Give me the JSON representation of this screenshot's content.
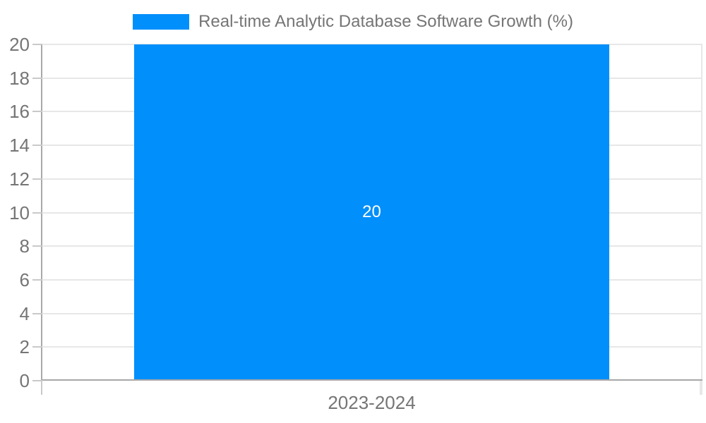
{
  "chart_data": {
    "type": "bar",
    "categories": [
      "2023-2024"
    ],
    "series": [
      {
        "name": "Real-time Analytic Database Software Growth (%)",
        "values": [
          20
        ]
      }
    ],
    "bar_labels": [
      "20"
    ],
    "title": "",
    "xlabel": "",
    "ylabel": "",
    "ylim": [
      0,
      20
    ],
    "yticks": [
      0,
      2,
      4,
      6,
      8,
      10,
      12,
      14,
      16,
      18,
      20
    ],
    "grid": true,
    "legend_position": "top"
  },
  "colors": {
    "bar": "#008ffb",
    "bar_label_text": "#ffffff",
    "axis_text": "#757575",
    "legend_text": "#757575",
    "gridline": "#e7e7e7",
    "axis_line": "#a8a8a8",
    "tick": "#c9c9c9",
    "background": "#ffffff"
  }
}
